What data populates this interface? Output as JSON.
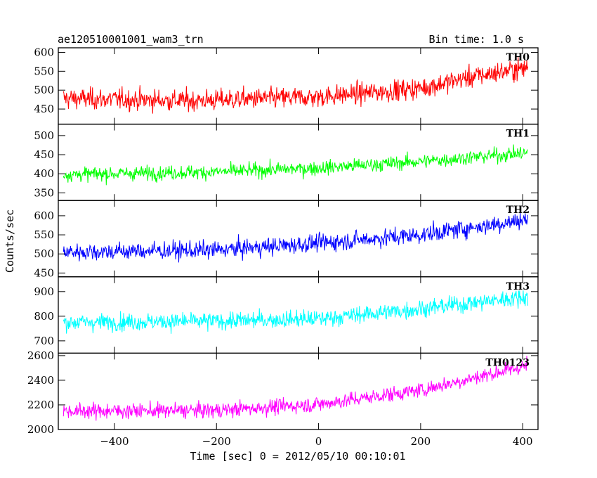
{
  "chart_data": {
    "type": "line",
    "title": "ae120510001001_wam3_trn",
    "bin_time_label": "Bin time: 1.0 s",
    "xlabel": "Time [sec] 0 = 2012/05/10 00:10:01",
    "ylabel": "Counts/sec",
    "xlim": [
      -510,
      430
    ],
    "x_ticks": [
      -400,
      -200,
      0,
      200,
      400
    ],
    "x_tick_labels": [
      "−400",
      "−200",
      "0",
      "200",
      "400"
    ],
    "x_range": [
      -500,
      410
    ],
    "panels": [
      {
        "name": "TH0",
        "color": "#ff0000",
        "ylim": [
          410,
          612
        ],
        "y_ticks": [
          450,
          500,
          550,
          600
        ],
        "y_tick_labels": [
          "450",
          "500",
          "550",
          "600"
        ],
        "trend": [
          [
            -500,
            478
          ],
          [
            -250,
            472
          ],
          [
            0,
            482
          ],
          [
            200,
            505
          ],
          [
            300,
            535
          ],
          [
            410,
            560
          ]
        ],
        "noise": 36
      },
      {
        "name": "TH1",
        "color": "#00ff00",
        "ylim": [
          330,
          530
        ],
        "y_ticks": [
          350,
          400,
          450,
          500
        ],
        "y_tick_labels": [
          "350",
          "400",
          "450",
          "500"
        ],
        "trend": [
          [
            -500,
            398
          ],
          [
            -200,
            405
          ],
          [
            0,
            415
          ],
          [
            200,
            432
          ],
          [
            410,
            455
          ]
        ],
        "noise": 24
      },
      {
        "name": "TH2",
        "color": "#0000ff",
        "ylim": [
          440,
          640
        ],
        "y_ticks": [
          450,
          500,
          550,
          600
        ],
        "y_tick_labels": [
          "450",
          "500",
          "550",
          "600"
        ],
        "trend": [
          [
            -500,
            505
          ],
          [
            -200,
            510
          ],
          [
            0,
            528
          ],
          [
            200,
            550
          ],
          [
            410,
            590
          ]
        ],
        "noise": 30
      },
      {
        "name": "TH3",
        "color": "#00ffff",
        "ylim": [
          650,
          960
        ],
        "y_ticks": [
          700,
          800,
          900
        ],
        "y_tick_labels": [
          "700",
          "800",
          "900"
        ],
        "trend": [
          [
            -500,
            775
          ],
          [
            -200,
            780
          ],
          [
            0,
            790
          ],
          [
            200,
            830
          ],
          [
            410,
            880
          ]
        ],
        "noise": 45
      },
      {
        "name": "TH0123",
        "color": "#ff00ff",
        "ylim": [
          2000,
          2620
        ],
        "y_ticks": [
          2000,
          2200,
          2400,
          2600
        ],
        "y_tick_labels": [
          "2000",
          "2200",
          "2400",
          "2600"
        ],
        "trend": [
          [
            -500,
            2150
          ],
          [
            -200,
            2155
          ],
          [
            0,
            2205
          ],
          [
            200,
            2320
          ],
          [
            410,
            2520
          ]
        ],
        "noise": 80
      }
    ]
  }
}
